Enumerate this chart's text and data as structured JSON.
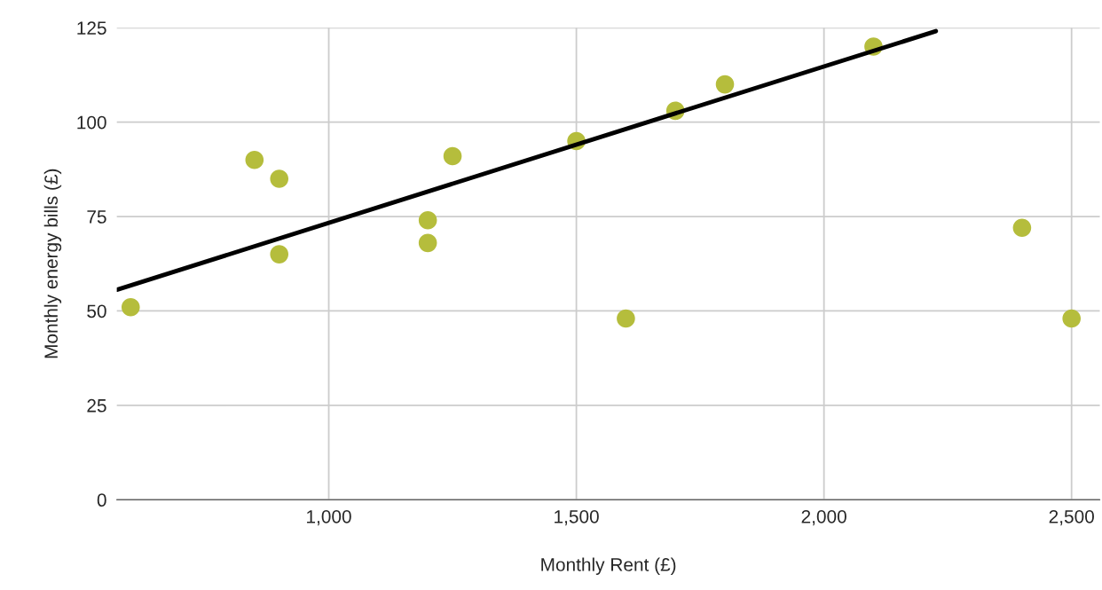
{
  "chart_data": {
    "type": "scatter",
    "xlabel": "Monthly Rent (£)",
    "ylabel": "Monthly energy bills (£)",
    "series": [
      {
        "marker": "circle",
        "color": "#b5bd3c",
        "x": [
          600,
          850,
          900,
          900,
          1200,
          1200,
          1250,
          1500,
          1600,
          1700,
          1800,
          2100,
          2400,
          2500
        ],
        "values": [
          51,
          90,
          85,
          65,
          74,
          68,
          91,
          95,
          48,
          103,
          110,
          120,
          72,
          48
        ]
      },
      {
        "type": "line",
        "color": "#000000",
        "x": [
          572,
          2226
        ],
        "values": [
          55.6,
          124.1
        ]
      }
    ],
    "xlim": [
      572,
      2557
    ],
    "xticks": [
      {
        "value": 1000,
        "label": "1,000"
      },
      {
        "value": 1500,
        "label": "1,500"
      },
      {
        "value": 2000,
        "label": "2,000"
      },
      {
        "value": 2500,
        "label": "2,500"
      }
    ],
    "ylim": [
      0,
      125
    ],
    "yticks": [
      0,
      25,
      50,
      75,
      100,
      125
    ],
    "grid": true
  }
}
